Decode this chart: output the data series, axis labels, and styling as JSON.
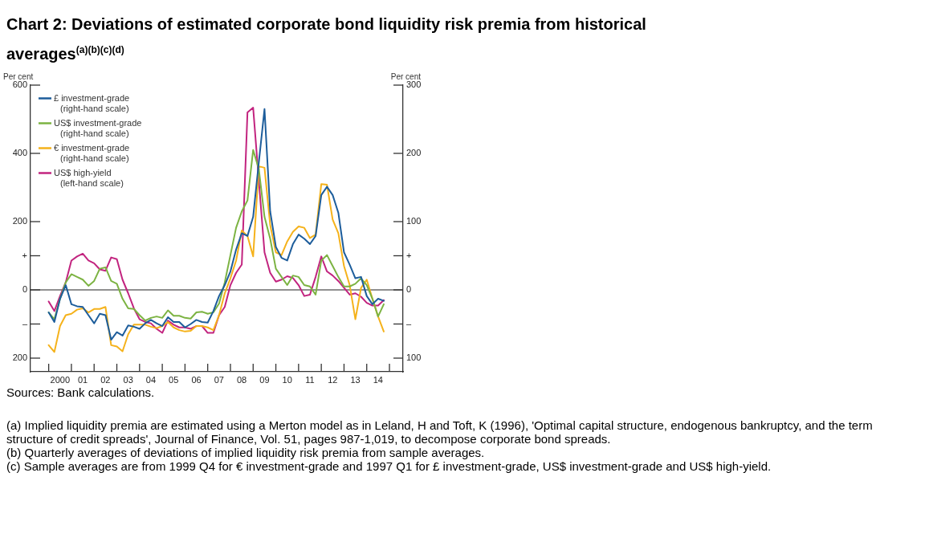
{
  "chart_data": {
    "type": "line",
    "title": "Chart 2: Deviations of estimated corporate bond liquidity risk premia from historical averages$^{(a)(b)(c)(d)}$",
    "ylabel": "Per cent",
    "y2label": "Per cent",
    "categories": [
      null,
      null,
      "2000",
      null,
      null,
      null,
      "01",
      null,
      null,
      null,
      "02",
      null,
      null,
      null,
      "03",
      null,
      null,
      null,
      "04",
      null,
      null,
      null,
      "05",
      null,
      null,
      null,
      "06",
      null,
      null,
      null,
      "07",
      null,
      null,
      null,
      "08",
      null,
      null,
      null,
      "09",
      null,
      null,
      null,
      "10",
      null,
      null,
      null,
      "11",
      null,
      null,
      null,
      "12",
      null,
      null,
      null,
      "13",
      null,
      null,
      null,
      "14",
      null
    ],
    "series": [
      {
        "name": "£ investment-grade (right-hand scale)",
        "color": "#1d5d9b",
        "axis": "y2",
        "values": [
          -33,
          -47,
          -13,
          7,
          -21,
          -24,
          -25,
          -37,
          -49,
          -35,
          -37,
          -73,
          -62,
          -67,
          -52,
          -54,
          -57,
          -49,
          -44,
          -49,
          -53,
          -40,
          -47,
          -47,
          -55,
          -50,
          -44,
          -47,
          -48,
          -31,
          -9,
          7,
          27,
          59,
          83,
          79,
          107,
          187,
          265,
          115,
          63,
          47,
          43,
          67,
          81,
          75,
          67,
          79,
          139,
          151,
          139,
          113,
          55,
          37,
          17,
          19,
          -9,
          -21,
          -13,
          -16
        ]
      },
      {
        "name": "US$ investment-grade (right-hand scale)",
        "color": "#7cb342",
        "axis": "y2",
        "values": [
          -33,
          -43,
          -13,
          11,
          23,
          19,
          15,
          6,
          13,
          31,
          33,
          13,
          9,
          -13,
          -27,
          -28,
          -37,
          -45,
          -41,
          -39,
          -41,
          -30,
          -38,
          -38,
          -41,
          -42,
          -33,
          -32,
          -35,
          -33,
          -20,
          11,
          51,
          91,
          115,
          131,
          205,
          177,
          107,
          75,
          31,
          19,
          7,
          21,
          19,
          7,
          5,
          -7,
          43,
          51,
          35,
          19,
          5,
          5,
          9,
          17,
          7,
          -13,
          -39,
          -21
        ]
      },
      {
        "name": "€ investment-grade (right-hand scale)",
        "color": "#f5b21b",
        "axis": "y2",
        "values": [
          -81,
          -91,
          -53,
          -37,
          -35,
          -29,
          -27,
          -33,
          -28,
          -28,
          -25,
          -81,
          -83,
          -90,
          -65,
          -51,
          -51,
          -51,
          -54,
          -56,
          -53,
          -47,
          -55,
          -59,
          -61,
          -60,
          -53,
          -53,
          -55,
          -59,
          -37,
          -5,
          17,
          43,
          87,
          79,
          49,
          181,
          179,
          95,
          55,
          51,
          71,
          85,
          93,
          91,
          76,
          81,
          155,
          154,
          103,
          83,
          35,
          7,
          -43,
          3,
          15,
          -13,
          -39,
          -61
        ]
      },
      {
        "name": "US$ high-yield (left-hand scale)",
        "color": "#c2247f",
        "values": [
          -34,
          -62,
          -18,
          22,
          86,
          98,
          106,
          86,
          78,
          60,
          56,
          95,
          90,
          30,
          -10,
          -54,
          -86,
          -94,
          -98,
          -114,
          -126,
          -90,
          -102,
          -110,
          -110,
          -114,
          -106,
          -106,
          -126,
          -126,
          -74,
          -50,
          14,
          50,
          74,
          520,
          534,
          320,
          110,
          50,
          24,
          30,
          40,
          35,
          14,
          -18,
          -14,
          38,
          98,
          54,
          42,
          26,
          6,
          -14,
          -10,
          -20,
          -38,
          -46,
          -46,
          -30
        ]
      }
    ],
    "ylim": [
      -240,
      600
    ],
    "yticks": [
      600,
      400,
      200,
      {
        "value": 100,
        "label": "+"
      },
      0,
      {
        "value": -100,
        "label": "–"
      },
      {
        "value": -200,
        "label": "200"
      }
    ],
    "y2lim": [
      -120,
      300
    ],
    "y2ticks": [
      300,
      200,
      100,
      {
        "value": 50,
        "label": "+"
      },
      0,
      {
        "value": -50,
        "label": "–"
      },
      {
        "value": -100,
        "label": "100"
      }
    ],
    "ref_lines": [
      {
        "axis": "y",
        "value": 0,
        "color": "#222222"
      }
    ],
    "legend": "top left",
    "annotations": [
      "Sources: Bank calculations.",
      "(a) Implied liquidity premia are estimated using a Merton model as in Leland, H and Toft, K (1996), 'Optimal capital structure, endogenous bankruptcy, and the term structure of credit spreads', Journal of Finance, Vol. 51, pages 987-1,019, to decompose corporate bond spreads.",
      "(b) Quarterly averages of deviations of implied liquidity risk premia from sample averages.",
      "(c) Sample averages are from 1999 Q4 for € investment-grade and 1997 Q1 for £ investment-grade, US$ investment-grade and US$ high-yield."
    ]
  }
}
